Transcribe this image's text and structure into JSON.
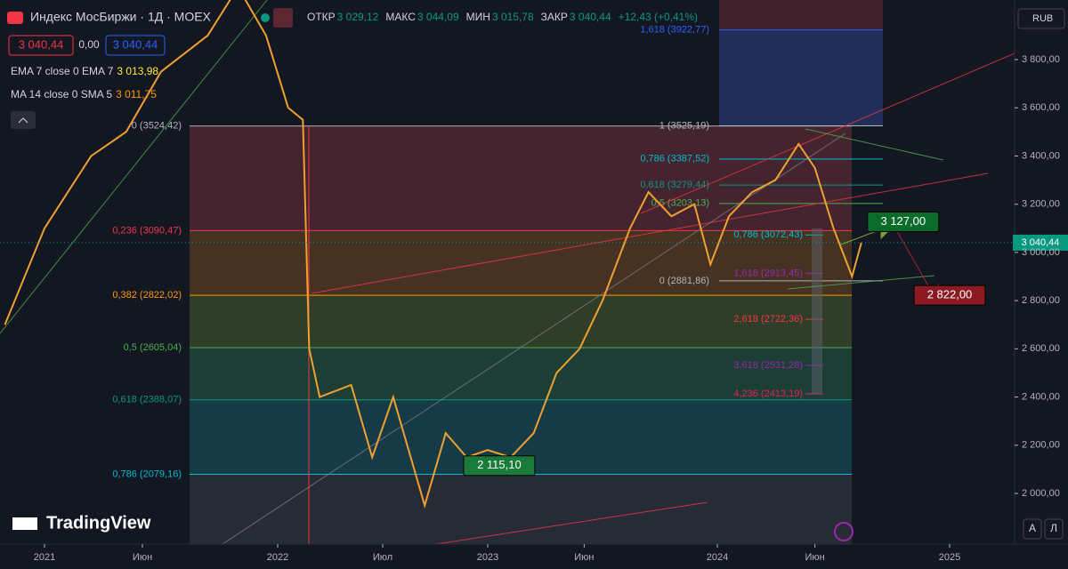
{
  "header": {
    "symbol": "Индекс МосБиржи · 1Д · MOEX",
    "ohlc": [
      {
        "key": "ОТКР",
        "value": "3 029,12"
      },
      {
        "key": "МАКС",
        "value": "3 044,09"
      },
      {
        "key": "МИН",
        "value": "3 015,78"
      },
      {
        "key": "ЗАКР",
        "value": "3 040,44"
      }
    ],
    "change": "+12,43 (+0,41%)",
    "sell": "3 040,44",
    "spread": "0,00",
    "buy": "3 040,44",
    "indicators": [
      {
        "name": "EMA 7 close 0 EMA 7",
        "value": "3 013,98"
      },
      {
        "name": "MA 14 close 0 SMA 5",
        "value": "3 011,75"
      }
    ]
  },
  "currency": "RUB",
  "price_ticks": [
    {
      "value": 3800,
      "label": "3 800,00"
    },
    {
      "value": 3600,
      "label": "3 600,00"
    },
    {
      "value": 3400,
      "label": "3 400,00"
    },
    {
      "value": 3200,
      "label": "3 200,00"
    },
    {
      "value": 3000,
      "label": "3 000,00"
    },
    {
      "value": 2800,
      "label": "2 800,00"
    },
    {
      "value": 2600,
      "label": "2 600,00"
    },
    {
      "value": 2400,
      "label": "2 400,00"
    },
    {
      "value": 2200,
      "label": "2 200,00"
    },
    {
      "value": 2000,
      "label": "2 000,00"
    }
  ],
  "time_ticks": [
    {
      "value": 2021,
      "label": "2021"
    },
    {
      "value": 2021.42,
      "label": "Июн"
    },
    {
      "value": 2022,
      "label": "2022"
    },
    {
      "value": 2022.5,
      "label": "Июл"
    },
    {
      "value": 2023,
      "label": "2023"
    },
    {
      "value": 2023.42,
      "label": "Июн"
    },
    {
      "value": 2024,
      "label": "2024"
    },
    {
      "value": 2024.42,
      "label": "Июн"
    },
    {
      "value": 2025,
      "label": "2025"
    }
  ],
  "current_price": {
    "value": 3040.44,
    "label": "3 040,44"
  },
  "main_fib": [
    {
      "label": "0 (3524,42)",
      "value": 3524.42,
      "color": "#b2b5be",
      "band": "#4a2630"
    },
    {
      "label": "0,236 (3090,47)",
      "value": 3090.47,
      "color": "#f23645",
      "band": "#4d3524"
    },
    {
      "label": "0,382 (2822,02)",
      "value": 2822.02,
      "color": "#ff9800",
      "band": "#34432a"
    },
    {
      "label": "0,5 (2605,04)",
      "value": 2605.04,
      "color": "#4caf50",
      "band": "#1e4236"
    },
    {
      "label": "0,618 (2388,07)",
      "value": 2388.07,
      "color": "#089981",
      "band": "#173f4a"
    },
    {
      "label": "0,786 (2079,16)",
      "value": 2079.16,
      "color": "#00bcd4",
      "band": "#2a2e39"
    }
  ],
  "right_fib": [
    {
      "label": "1,618 (3922,77)",
      "value": 3922.77,
      "color": "#2962ff"
    },
    {
      "label": "1 (3525,19)",
      "value": 3525.19,
      "color": "#b2b5be"
    },
    {
      "label": "0,786 (3387,52)",
      "value": 3387.52,
      "color": "#00bcd4"
    },
    {
      "label": "0,618 (3279,44)",
      "value": 3279.44,
      "color": "#089981"
    },
    {
      "label": "0,5 (3203,13)",
      "value": 3203.13,
      "color": "#4caf50"
    },
    {
      "label": "0 (2881,86)",
      "value": 2881.86,
      "color": "#b2b5be"
    }
  ],
  "ext_fib": [
    {
      "label": "0,786 (3072,43)",
      "value": 3072.43,
      "color": "#00bcd4"
    },
    {
      "label": "1,618 (2913,45)",
      "value": 2913.45,
      "color": "#9c27b0"
    },
    {
      "label": "2,618 (2722,36)",
      "value": 2722.36,
      "color": "#f23645"
    },
    {
      "label": "3,618 (2531,28)",
      "value": 2531.28,
      "color": "#9c27b0"
    },
    {
      "label": "4,236 (2413,19)",
      "value": 2413.19,
      "color": "#e91e63"
    }
  ],
  "price_labels": [
    {
      "text": "3 127,00",
      "value": 3127,
      "t": 2024.8,
      "color": "#0b6b2a"
    },
    {
      "text": "2 822,00",
      "value": 2822,
      "t": 2025.0,
      "color": "#8b1a22"
    },
    {
      "text": "2 115,10",
      "value": 2115.1,
      "t": 2023.05,
      "color": "#1a7a3a"
    }
  ],
  "logo": "TradingView",
  "buttons": [
    "A",
    "Л"
  ],
  "price": {
    "t": [
      2020.83,
      2021.0,
      2021.2,
      2021.35,
      2021.5,
      2021.7,
      2021.83,
      2021.95,
      2022.05,
      2022.12,
      2022.15,
      2022.2,
      2022.35,
      2022.45,
      2022.55,
      2022.7,
      2022.8,
      2022.9,
      2023.0,
      2023.1,
      2023.2,
      2023.3,
      2023.4,
      2023.5,
      2023.62,
      2023.7,
      2023.8,
      2023.9,
      2023.97,
      2024.05,
      2024.15,
      2024.25,
      2024.35,
      2024.42,
      2024.5,
      2024.58,
      2024.62
    ],
    "close": [
      2700,
      3100,
      3400,
      3500,
      3750,
      3900,
      4100,
      3900,
      3600,
      3550,
      2600,
      2400,
      2450,
      2150,
      2400,
      1950,
      2250,
      2150,
      2180,
      2150,
      2250,
      2500,
      2600,
      2800,
      3100,
      3250,
      3150,
      3200,
      2950,
      3150,
      3250,
      3300,
      3450,
      3350,
      3100,
      2900,
      3040
    ]
  }
}
